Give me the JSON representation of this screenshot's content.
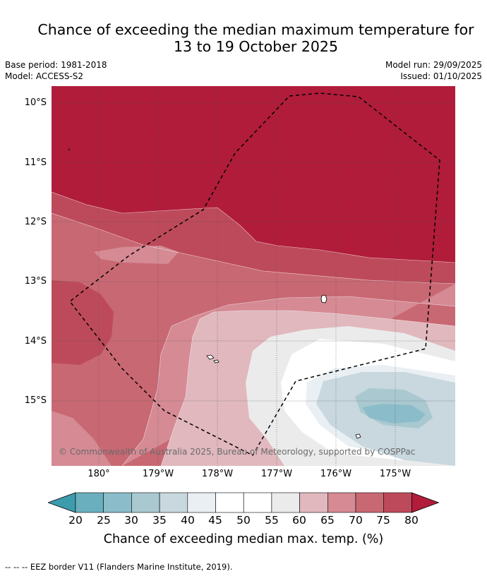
{
  "title_line1": "Chance of exceeding the median maximum temperature for",
  "title_line2": "13 to 19 October 2025",
  "base_period": "Base period: 1981-2018",
  "model": "Model: ACCESS-S2",
  "model_run": "Model run: 29/09/2025",
  "issued": "Issued: 01/10/2025",
  "lat_labels": [
    "10°S",
    "11°S",
    "12°S",
    "13°S",
    "14°S",
    "15°S"
  ],
  "lon_labels": [
    "180°",
    "179°W",
    "178°W",
    "177°W",
    "176°W",
    "175°W"
  ],
  "copyright": "© Commonwealth of Australia 2025, Bureau of Meteorology, supported by COSPPac",
  "colorbar": {
    "ticks": [
      "20",
      "25",
      "30",
      "35",
      "40",
      "45",
      "50",
      "55",
      "60",
      "65",
      "70",
      "75",
      "80"
    ],
    "colors": [
      "#3d9bae",
      "#6aafbe",
      "#8bbcc9",
      "#a9c8d0",
      "#c8d8de",
      "#e9eff2",
      "#ffffff",
      "#ffffff",
      "#ecebec",
      "#e0b8bd",
      "#d58a94",
      "#c86873",
      "#bd4a5a",
      "#b01c3a"
    ],
    "label": "Chance of exceeding median max. temp. (%)"
  },
  "footer": "--  --  -- EEZ border V11 (Flanders Marine Institute, 2019)."
}
